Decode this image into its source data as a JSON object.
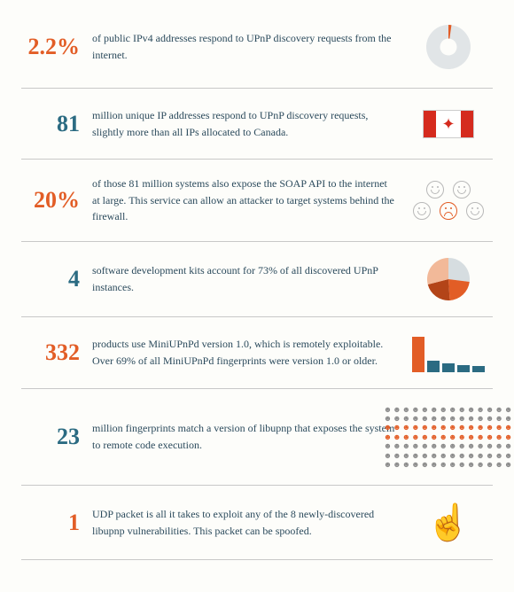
{
  "colors": {
    "accent": "#e25d26",
    "muted": "#2b6b82",
    "grey": "#8a8a8a",
    "lightgrey": "#d6dde0",
    "text": "#2b4a5c"
  },
  "rows": [
    {
      "id": "ipv4",
      "stat": "2.2%",
      "stat_color": "#e25d26",
      "desc": "of public IPv4 addresses respond to UPnP discovery requests from the internet.",
      "viz": {
        "type": "pie-slice",
        "slice_pct": 2.2,
        "slice_color": "#e25d26",
        "rest_color": "#e1e5e7",
        "size": 50
      }
    },
    {
      "id": "canada",
      "stat": "81",
      "stat_color": "#2b6b82",
      "desc": "million unique IP addresses respond to UPnP discovery requests, slightly more than all IPs allocated to Canada.",
      "viz": {
        "type": "flag-canada"
      }
    },
    {
      "id": "soap",
      "stat": "20%",
      "stat_color": "#e25d26",
      "desc": "of those 81 million systems also expose the SOAP API to the internet at large. This service can allow an attacker to target systems behind the firewall.",
      "viz": {
        "type": "faces",
        "layout": [
          [
            "happy-grey",
            "happy-grey"
          ],
          [
            "happy-grey",
            "sad-orange",
            "happy-grey"
          ]
        ]
      }
    },
    {
      "id": "sdk",
      "stat": "4",
      "stat_color": "#2b6b82",
      "desc": "software development kits account for 73% of all discovered UPnP instances.",
      "viz": {
        "type": "pie-quarters",
        "slices": [
          {
            "pct": 27,
            "color": "#d6dde0"
          },
          {
            "pct": 22,
            "color": "#e25d26"
          },
          {
            "pct": 22,
            "color": "#b34418"
          },
          {
            "pct": 29,
            "color": "#f2b999"
          }
        ],
        "size": 48
      }
    },
    {
      "id": "miniupnpd",
      "stat": "332",
      "stat_color": "#e25d26",
      "desc": "products use MiniUPnPd version 1.0, which is remotely exploitable. Over 69% of all MiniUPnPd fingerprints were version 1.0 or older.",
      "viz": {
        "type": "bars",
        "heights": [
          40,
          13,
          10,
          8,
          7
        ],
        "colors": [
          "#e25d26",
          "#2b6b82",
          "#2b6b82",
          "#2b6b82",
          "#2b6b82"
        ]
      }
    },
    {
      "id": "libupnp",
      "stat": "23",
      "stat_color": "#2b6b82",
      "desc": "million fingerprints match a version of libupnp that exposes the system to remote code execution.",
      "viz": {
        "type": "dot-grid",
        "cols": 14,
        "rows": 7,
        "highlight_rows": [
          2,
          3
        ],
        "base_color": "#8a8a8a",
        "highlight_color": "#e25d26",
        "glyph": "☻"
      }
    },
    {
      "id": "udp",
      "stat": "1",
      "stat_color": "#e25d26",
      "desc": "UDP packet is all it takes to exploit any of the 8 newly-discovered libupnp vulnerabilities. This packet can be spoofed.",
      "viz": {
        "type": "hand",
        "glyph": "☝",
        "color": "#e25d26"
      }
    }
  ]
}
